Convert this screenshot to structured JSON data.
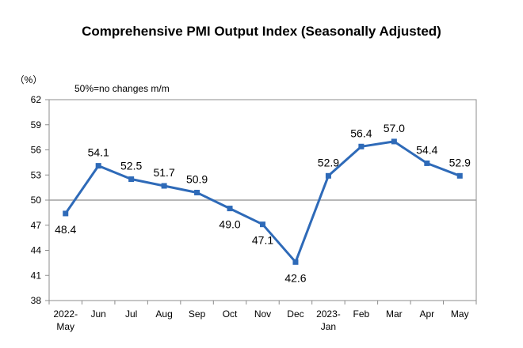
{
  "chart_data": {
    "type": "line",
    "title": "Comprehensive PMI Output Index (Seasonally Adjusted)",
    "ylabel": "（%）",
    "annotation": "50%=no changes m/m",
    "categories": [
      [
        "2022-",
        "May"
      ],
      [
        "Jun"
      ],
      [
        "Jul"
      ],
      [
        "Aug"
      ],
      [
        "Sep"
      ],
      [
        "Oct"
      ],
      [
        "Nov"
      ],
      [
        "Dec"
      ],
      [
        "2023-",
        "Jan"
      ],
      [
        "Feb"
      ],
      [
        "Mar"
      ],
      [
        "Apr"
      ],
      [
        "May"
      ]
    ],
    "series": [
      {
        "values": [
          48.4,
          54.1,
          52.5,
          51.7,
          50.9,
          49.0,
          47.1,
          42.6,
          52.9,
          56.4,
          57.0,
          54.4,
          52.9
        ]
      }
    ],
    "data_labels": [
      "48.4",
      "54.1",
      "52.5",
      "51.7",
      "50.9",
      "49.0",
      "47.1",
      "42.6",
      "52.9",
      "56.4",
      "57.0",
      "54.4",
      "52.9"
    ],
    "ylim": [
      38,
      62
    ],
    "yticks": [
      38,
      41,
      44,
      47,
      50,
      53,
      56,
      59,
      62
    ],
    "reference_line": 50,
    "line_color": "#2e6ab8",
    "reference_color": "#a0a0a0",
    "grid": false,
    "legend": "none"
  }
}
